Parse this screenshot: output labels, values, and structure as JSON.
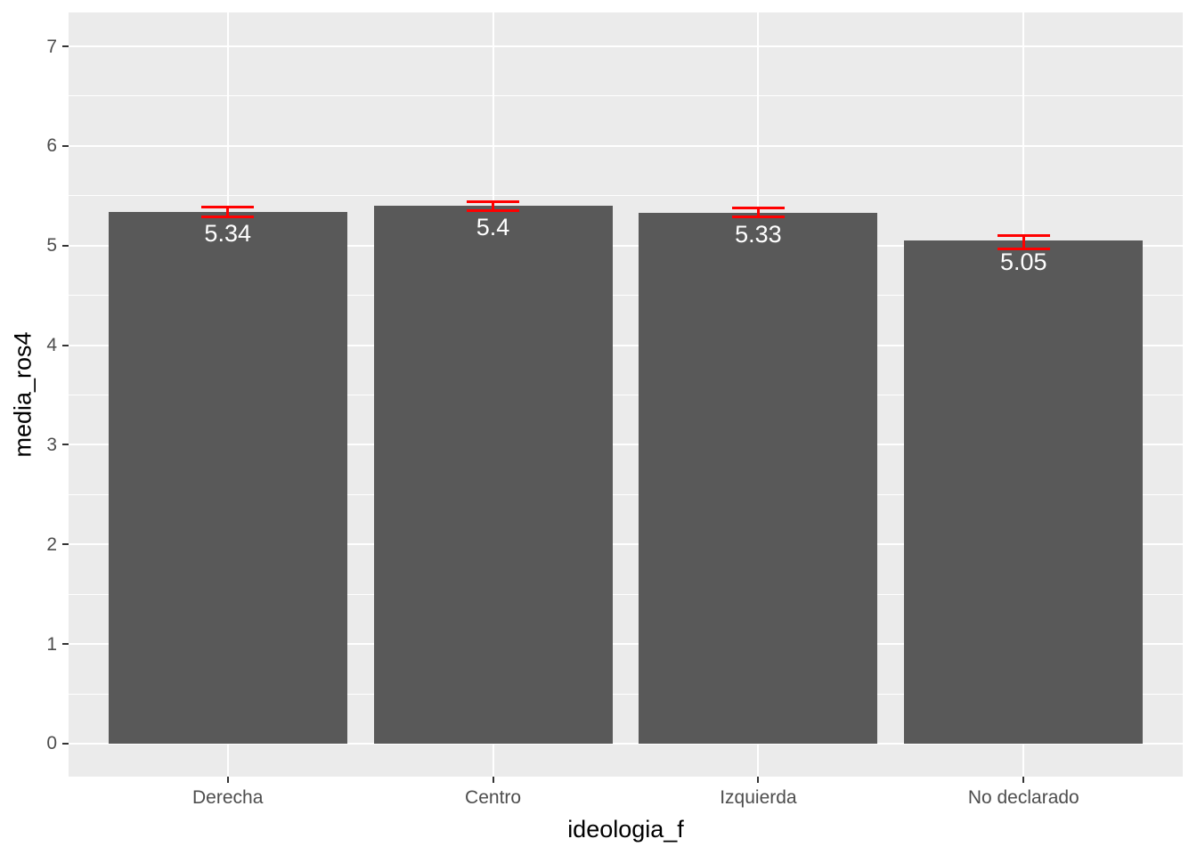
{
  "chart_data": {
    "type": "bar",
    "title": "",
    "categories": [
      "Derecha",
      "Centro",
      "Izquierda",
      "No declarado"
    ],
    "values": [
      5.34,
      5.4,
      5.33,
      5.05
    ],
    "bar_labels": [
      "5.34",
      "5.4",
      "5.33",
      "5.05"
    ],
    "error_bars": {
      "lower": [
        5.29,
        5.35,
        5.29,
        4.97
      ],
      "upper": [
        5.39,
        5.44,
        5.38,
        5.1
      ]
    },
    "xlabel": "ideologia_f",
    "ylabel": "media_ros4",
    "yticks": [
      0,
      1,
      2,
      3,
      4,
      5,
      6,
      7
    ],
    "ylim": [
      -0.331,
      7.34
    ],
    "grid": "horizontal major+minor white lines, vertical major white lines at category centers",
    "legend": "none",
    "bar_width_fraction": 0.9,
    "errorbar_cap_fraction": 0.2
  },
  "style": {
    "figure_bg": "#ffffff",
    "panel_bg": "#ebebeb",
    "grid_color": "#ffffff",
    "bar_color": "#595959",
    "bar_label_color": "#ffffff",
    "error_color": "#ff0000",
    "tick_mark_color": "#333333",
    "tick_label_color": "#4d4d4d",
    "axis_title_color": "#000000"
  }
}
